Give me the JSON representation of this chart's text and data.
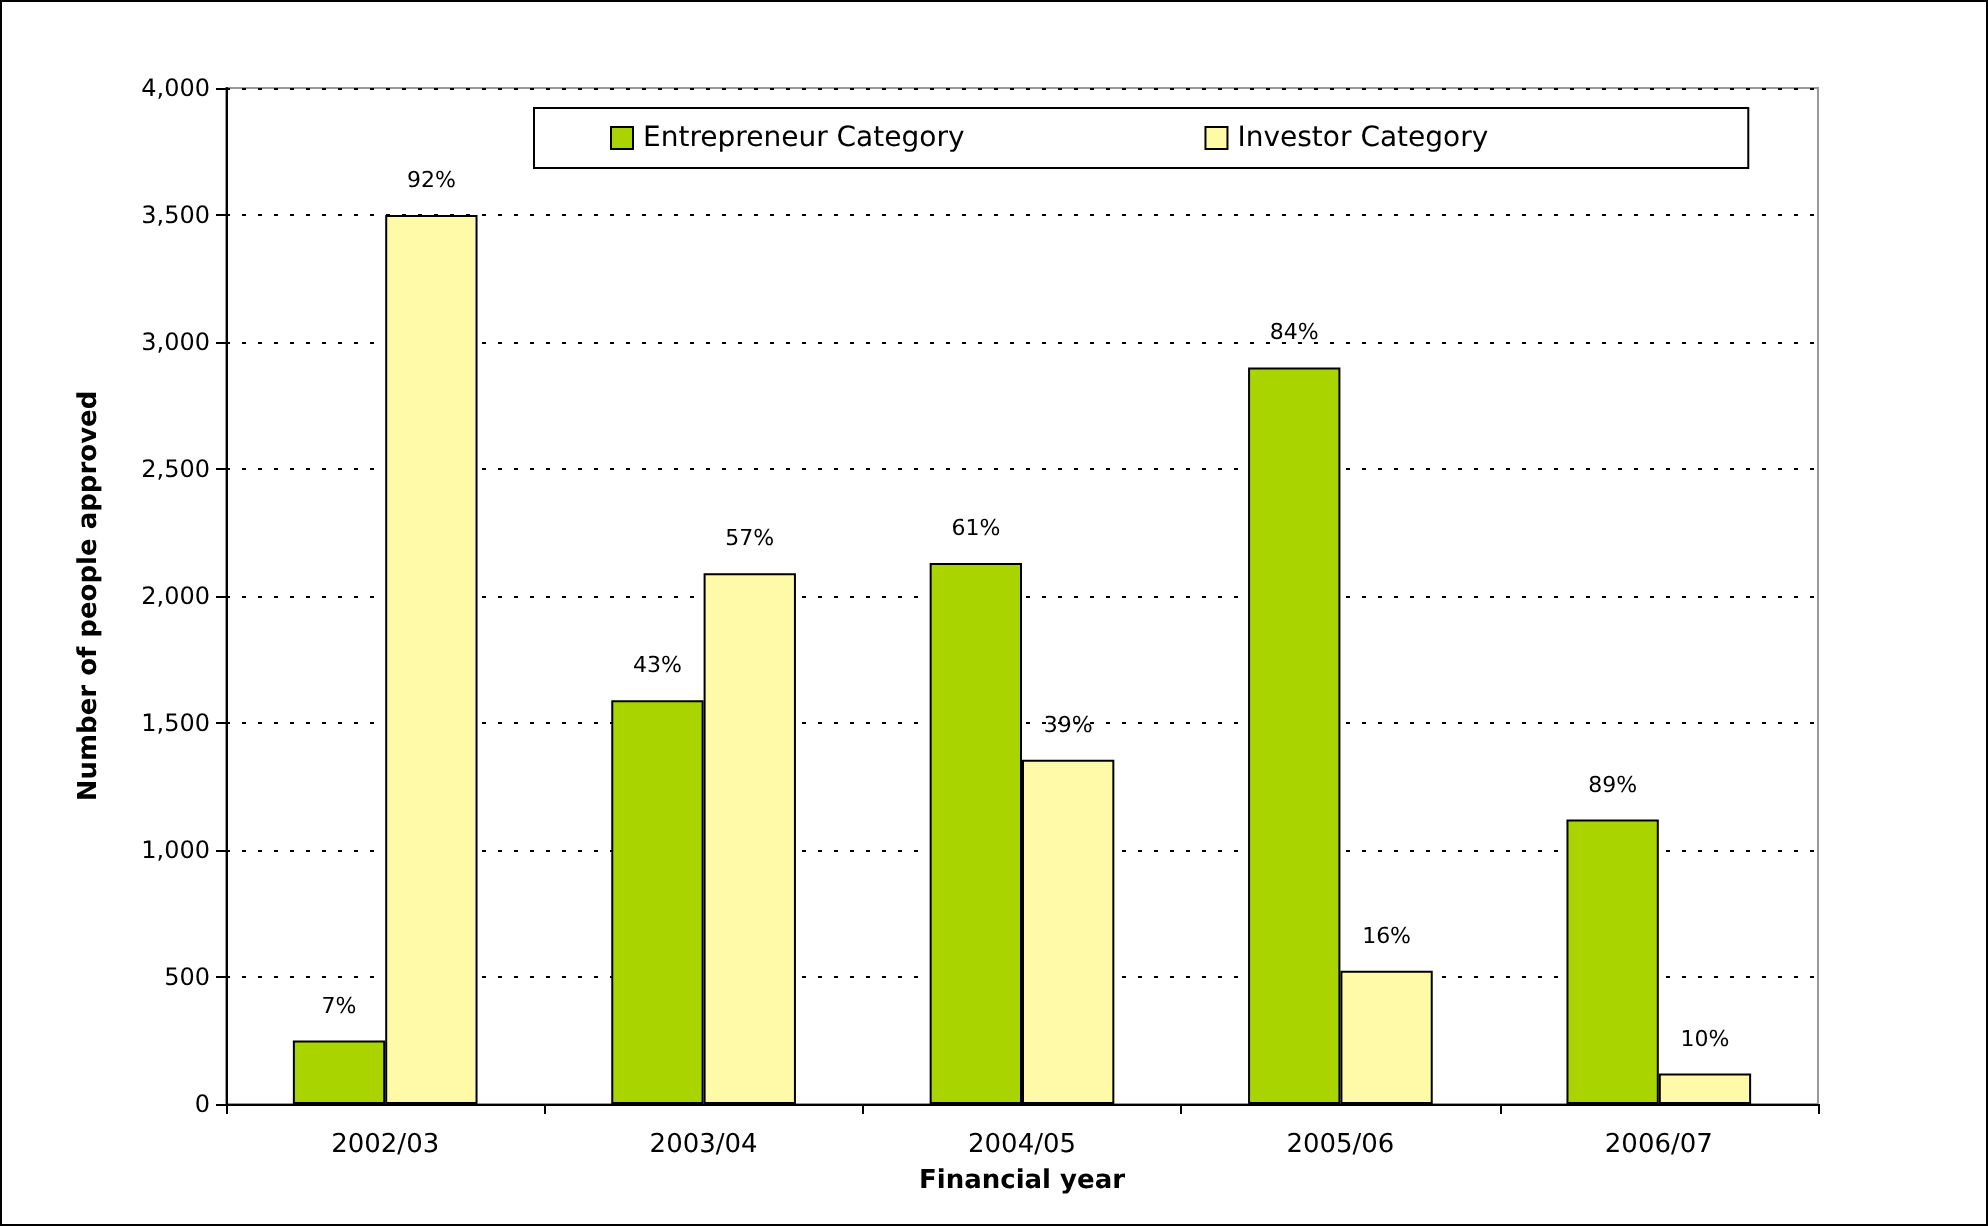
{
  "chart_data": {
    "type": "bar",
    "xlabel": "Financial year",
    "ylabel": "Number of people approved",
    "categories": [
      "2002/03",
      "2003/04",
      "2004/05",
      "2005/06",
      "2006/07"
    ],
    "series": [
      {
        "name": "Entrepreneur Category",
        "color": "#aad400",
        "values": [
          250,
          1590,
          2130,
          2900,
          1120
        ]
      },
      {
        "name": "Investor Category",
        "color": "#fffaa8",
        "values": [
          3500,
          2090,
          1355,
          525,
          120
        ]
      }
    ],
    "annotations": [
      {
        "text": "7%",
        "x": "2002/03",
        "y": 250
      },
      {
        "text": "43%",
        "x": "2003/04",
        "y": 1590
      },
      {
        "text": "61%",
        "x": "2004/05",
        "y": 2130
      },
      {
        "text": "84%",
        "x": "2005/06",
        "y": 2900
      },
      {
        "text": "89%",
        "x": "2006/07",
        "y": 1120
      },
      {
        "text": "92%",
        "x": "2002/03",
        "y": 3500
      },
      {
        "text": "57%",
        "x": "2003/04",
        "y": 2090
      },
      {
        "text": "39%",
        "x": "2004/05",
        "y": 1355
      },
      {
        "text": "16%",
        "x": "2005/06",
        "y": 525
      },
      {
        "text": "10%",
        "x": "2006/07",
        "y": 120
      }
    ],
    "ylim": [
      0,
      4000
    ],
    "yticks": [
      {
        "value": 0,
        "label": "0"
      },
      {
        "value": 500,
        "label": "500"
      },
      {
        "value": 1000,
        "label": "1,000"
      },
      {
        "value": 1500,
        "label": "1,500"
      },
      {
        "value": 2000,
        "label": "2,000"
      },
      {
        "value": 2500,
        "label": "2,500"
      },
      {
        "value": 3000,
        "label": "3,000"
      },
      {
        "value": 3500,
        "label": "3,500"
      },
      {
        "value": 4000,
        "label": "4,000"
      }
    ],
    "grid": "y",
    "legend": "top"
  }
}
